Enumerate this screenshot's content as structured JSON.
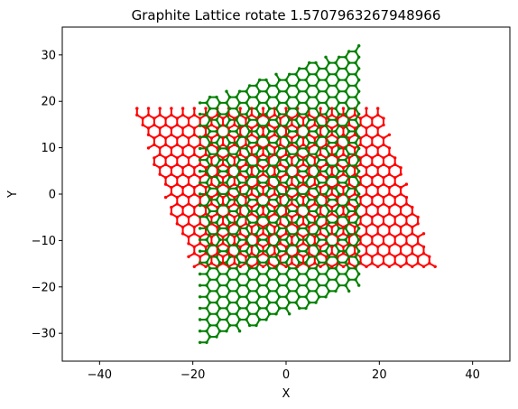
{
  "chart_data": {
    "type": "scatter",
    "title": "Graphite Lattice rotate 1.5707963267948966",
    "xlabel": "X",
    "ylabel": "Y",
    "xlim": [
      -48,
      48
    ],
    "ylim": [
      -36,
      36
    ],
    "x_ticks": [
      -40,
      -20,
      0,
      20,
      40
    ],
    "y_ticks": [
      -30,
      -20,
      -10,
      0,
      10,
      20,
      30
    ],
    "grid": false,
    "legend": "none",
    "series": [
      {
        "color": "#ff0000",
        "lattice": {
          "bond_length": 1.42,
          "rotation_deg": 0,
          "corners": [
            [
              -33,
              19
            ],
            [
              20,
              19
            ],
            [
              33,
              -17
            ],
            [
              -20,
              -17
            ]
          ]
        }
      },
      {
        "color": "#008000",
        "lattice": {
          "bond_length": 1.42,
          "rotation_deg": 90,
          "corners": [
            [
              -19,
              -33
            ],
            [
              -19,
              20
            ],
            [
              17,
              33
            ],
            [
              17,
              -20
            ]
          ]
        }
      }
    ]
  }
}
